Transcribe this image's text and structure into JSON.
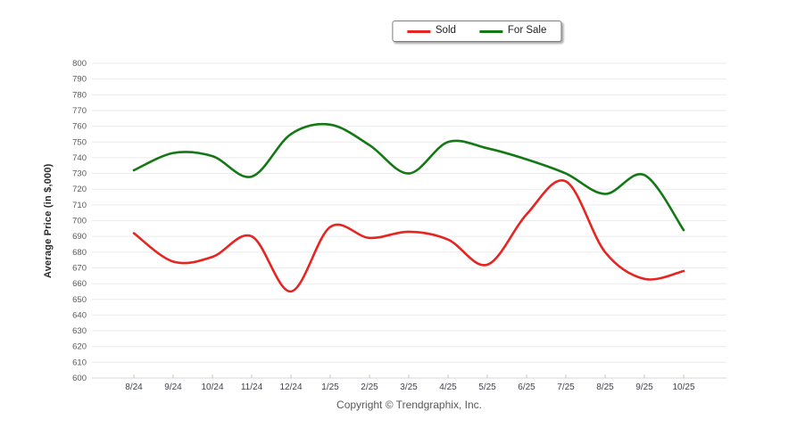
{
  "chart": {
    "legend": {
      "items": [
        {
          "label": "Sold",
          "color": "#e62420"
        },
        {
          "label": "For Sale",
          "color": "#147814"
        }
      ],
      "position": "top-center"
    }
  },
  "chart_data": {
    "type": "line",
    "title": "",
    "xlabel": "",
    "ylabel": "Average Price (in $,000)",
    "categories": [
      "8/24",
      "9/24",
      "10/24",
      "11/24",
      "12/24",
      "1/25",
      "2/25",
      "3/25",
      "4/25",
      "5/25",
      "6/25",
      "7/25",
      "8/25",
      "9/25",
      "10/25"
    ],
    "series": [
      {
        "name": "Sold",
        "color": "#e62420",
        "values": [
          692,
          674,
          677,
          690,
          655,
          696,
          689,
          693,
          688,
          672,
          704,
          725,
          680,
          663,
          668
        ]
      },
      {
        "name": "For Sale",
        "color": "#147814",
        "values": [
          732,
          743,
          741,
          728,
          755,
          761,
          748,
          730,
          750,
          746,
          739,
          730,
          717,
          729,
          694
        ]
      }
    ],
    "ylim": [
      600,
      800
    ],
    "ytick_step": 10,
    "grid": true,
    "smooth": true,
    "legend_position": "top-center",
    "colors": {
      "gridline": "#ebebeb",
      "bottom_axis": "#d6d6d6",
      "tick_mark": "#c8c8c8",
      "y_tick_text": "#595959",
      "x_tick_text": "#40424d"
    }
  },
  "footer": {
    "copyright": "Copyright © Trendgraphix, Inc."
  }
}
